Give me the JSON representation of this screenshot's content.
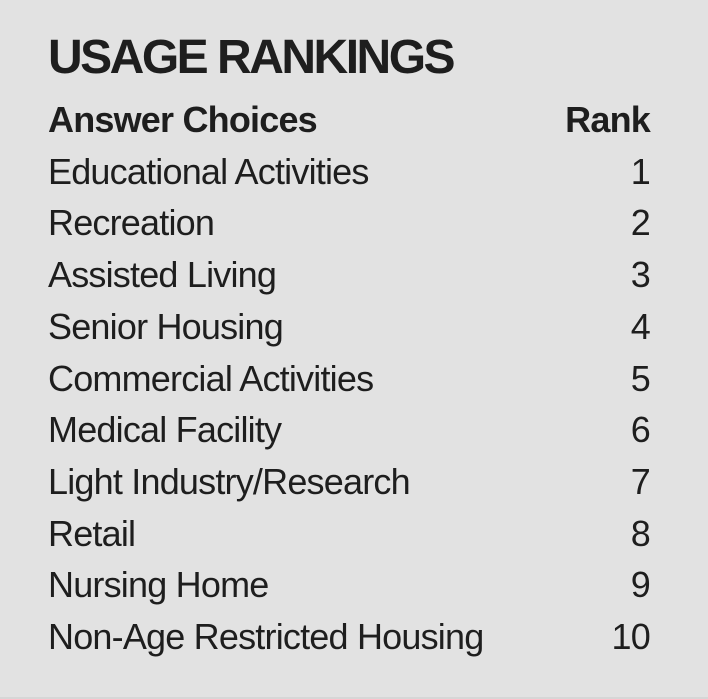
{
  "panel": {
    "title": "USAGE RANKINGS",
    "columns": {
      "label": "Answer Choices",
      "rank": "Rank"
    }
  },
  "chart_data": {
    "type": "table",
    "title": "USAGE RANKINGS",
    "columns": [
      "Answer Choices",
      "Rank"
    ],
    "rows": [
      {
        "label": "Educational Activities",
        "rank": "1"
      },
      {
        "label": "Recreation",
        "rank": "2"
      },
      {
        "label": "Assisted Living",
        "rank": "3"
      },
      {
        "label": "Senior Housing",
        "rank": "4"
      },
      {
        "label": "Commercial Activities",
        "rank": "5"
      },
      {
        "label": "Medical Facility",
        "rank": "6"
      },
      {
        "label": "Light Industry/Research",
        "rank": "7"
      },
      {
        "label": "Retail",
        "rank": "8"
      },
      {
        "label": "Nursing Home",
        "rank": "9"
      },
      {
        "label": "Non-Age Restricted Housing",
        "rank": "10"
      }
    ],
    "categories": [
      "Educational Activities",
      "Recreation",
      "Assisted Living",
      "Senior Housing",
      "Commercial Activities",
      "Medical Facility",
      "Light Industry/Research",
      "Retail",
      "Nursing Home",
      "Non-Age Restricted Housing"
    ],
    "values": [
      1,
      2,
      3,
      4,
      5,
      6,
      7,
      8,
      9,
      10
    ],
    "legend": "none",
    "grid": false
  },
  "colors": {
    "background": "#e2e2e2",
    "text": "#1e1e1e"
  }
}
